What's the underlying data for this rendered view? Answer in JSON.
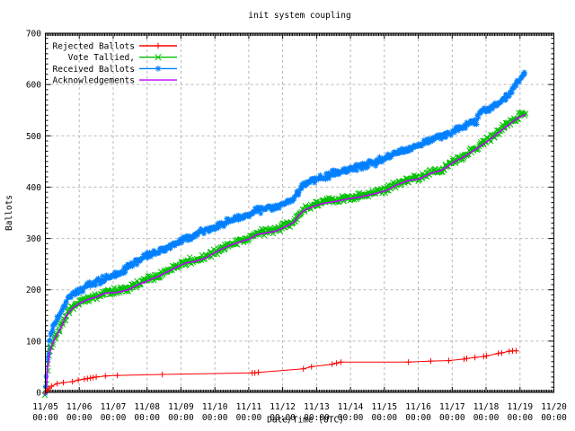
{
  "chart": {
    "title": "init system coupling",
    "xlabel": "Date/Time (UTC)",
    "ylabel": "Ballots",
    "background_color": "#ffffff",
    "border_color": "#000000",
    "grid_color": "#b8b8b8",
    "x_tick_dates": [
      "11/05",
      "11/06",
      "11/07",
      "11/08",
      "11/09",
      "11/10",
      "11/11",
      "11/12",
      "11/13",
      "11/14",
      "11/15",
      "11/16",
      "11/17",
      "11/18",
      "11/19",
      "11/20"
    ],
    "x_tick_time": "00:00",
    "y_tick_labels": [
      "0",
      "100",
      "200",
      "300",
      "400",
      "500",
      "600",
      "700"
    ]
  },
  "chart_data": {
    "type": "line",
    "title": "init system coupling",
    "xlabel": "Date/Time (UTC)",
    "ylabel": "Ballots",
    "x_unit": "days since 11/05 00:00 UTC",
    "x_range_days": [
      0,
      15
    ],
    "ylim": [
      0,
      700
    ],
    "y_tick_step": 100,
    "x_minor_tick": "hourly",
    "y_minor_tick": 10,
    "grid": "dashed major ticks",
    "legend_position": "top-left inside plot, no box",
    "series": [
      {
        "name": "Rejected Ballots",
        "color": "#ff0000",
        "marker": "plus",
        "style": "line with markers at points",
        "points": [
          [
            0,
            0
          ],
          [
            0.05,
            3
          ],
          [
            0.1,
            7
          ],
          [
            0.18,
            12
          ],
          [
            0.35,
            17
          ],
          [
            0.53,
            19
          ],
          [
            0.8,
            21
          ],
          [
            0.97,
            24
          ],
          [
            1.15,
            26
          ],
          [
            1.24,
            27
          ],
          [
            1.33,
            28
          ],
          [
            1.41,
            29
          ],
          [
            1.5,
            30
          ],
          [
            1.77,
            32
          ],
          [
            2.12,
            33
          ],
          [
            3.45,
            35
          ],
          [
            6.1,
            38
          ],
          [
            6.18,
            38
          ],
          [
            6.28,
            39
          ],
          [
            7.61,
            46
          ],
          [
            7.85,
            50
          ],
          [
            8.46,
            55
          ],
          [
            8.59,
            57
          ],
          [
            8.72,
            59
          ],
          [
            10.71,
            59
          ],
          [
            11.37,
            61
          ],
          [
            11.9,
            62
          ],
          [
            12.35,
            65
          ],
          [
            12.43,
            66
          ],
          [
            12.67,
            68
          ],
          [
            12.93,
            70
          ],
          [
            13.01,
            71
          ],
          [
            13.36,
            76
          ],
          [
            13.46,
            77
          ],
          [
            13.68,
            80
          ],
          [
            13.78,
            81
          ],
          [
            13.89,
            81
          ]
        ]
      },
      {
        "name": "Vote Tallied,",
        "color": "#00c000",
        "marker": "cross",
        "style": "dense scattered marker band",
        "points": [
          [
            0,
            0
          ],
          [
            0.04,
            20
          ],
          [
            0.07,
            50
          ],
          [
            0.1,
            70
          ],
          [
            0.16,
            88
          ],
          [
            0.22,
            98
          ],
          [
            0.29,
            108
          ],
          [
            0.36,
            116
          ],
          [
            0.42,
            123
          ],
          [
            0.5,
            134
          ],
          [
            0.56,
            144
          ],
          [
            0.63,
            152
          ],
          [
            0.69,
            158
          ],
          [
            0.8,
            166
          ],
          [
            0.95,
            173
          ],
          [
            1.1,
            178
          ],
          [
            1.22,
            182
          ],
          [
            1.35,
            185
          ],
          [
            1.48,
            187
          ],
          [
            1.6,
            191
          ],
          [
            1.75,
            195
          ],
          [
            1.9,
            196
          ],
          [
            2.1,
            197
          ],
          [
            2.28,
            199
          ],
          [
            2.42,
            202
          ],
          [
            2.54,
            205
          ],
          [
            2.68,
            210
          ],
          [
            2.81,
            214
          ],
          [
            2.97,
            218
          ],
          [
            3.1,
            222
          ],
          [
            3.34,
            228
          ],
          [
            3.47,
            233
          ],
          [
            3.6,
            237
          ],
          [
            3.75,
            242
          ],
          [
            3.87,
            246
          ],
          [
            4,
            250
          ],
          [
            4.13,
            254
          ],
          [
            4.27,
            256
          ],
          [
            4.4,
            257
          ],
          [
            4.53,
            260
          ],
          [
            4.7,
            263
          ],
          [
            4.93,
            272
          ],
          [
            5.19,
            281
          ],
          [
            5.46,
            289
          ],
          [
            5.72,
            295
          ],
          [
            6.02,
            301
          ],
          [
            6.25,
            310
          ],
          [
            6.52,
            313
          ],
          [
            6.79,
            316
          ],
          [
            7.05,
            324
          ],
          [
            7.32,
            333
          ],
          [
            7.45,
            345
          ],
          [
            7.58,
            354
          ],
          [
            7.71,
            359
          ],
          [
            7.92,
            365
          ],
          [
            8.24,
            371
          ],
          [
            8.56,
            374
          ],
          [
            8.91,
            379
          ],
          [
            9.3,
            383
          ],
          [
            9.7,
            389
          ],
          [
            10.05,
            395
          ],
          [
            10.36,
            406
          ],
          [
            10.71,
            415
          ],
          [
            11.03,
            418
          ],
          [
            11.37,
            429
          ],
          [
            11.69,
            435
          ],
          [
            11.82,
            440
          ],
          [
            12.03,
            450
          ],
          [
            12.2,
            456
          ],
          [
            12.4,
            463
          ],
          [
            12.6,
            472
          ],
          [
            12.72,
            477
          ],
          [
            12.9,
            485
          ],
          [
            13.1,
            494
          ],
          [
            13.25,
            502
          ],
          [
            13.42,
            511
          ],
          [
            13.6,
            520
          ],
          [
            13.76,
            528
          ],
          [
            13.94,
            537
          ],
          [
            14.08,
            541
          ],
          [
            14.16,
            544
          ]
        ]
      },
      {
        "name": "Received Ballots",
        "color": "#0080ff",
        "marker": "star",
        "style": "dense scattered marker band",
        "points": [
          [
            0,
            0
          ],
          [
            0.04,
            30
          ],
          [
            0.07,
            70
          ],
          [
            0.1,
            95
          ],
          [
            0.16,
            112
          ],
          [
            0.22,
            125
          ],
          [
            0.29,
            135
          ],
          [
            0.36,
            144
          ],
          [
            0.42,
            152
          ],
          [
            0.5,
            163
          ],
          [
            0.56,
            170
          ],
          [
            0.63,
            177
          ],
          [
            0.69,
            182
          ],
          [
            0.8,
            189
          ],
          [
            0.95,
            196
          ],
          [
            1.05,
            200
          ],
          [
            1.22,
            207
          ],
          [
            1.35,
            211
          ],
          [
            1.48,
            214
          ],
          [
            1.6,
            218
          ],
          [
            1.75,
            222
          ],
          [
            1.88,
            225
          ],
          [
            2,
            228
          ],
          [
            2.15,
            231
          ],
          [
            2.28,
            235
          ],
          [
            2.42,
            243
          ],
          [
            2.54,
            249
          ],
          [
            2.68,
            253
          ],
          [
            2.81,
            257
          ],
          [
            2.97,
            266
          ],
          [
            3.1,
            270
          ],
          [
            3.34,
            275
          ],
          [
            3.47,
            280
          ],
          [
            3.6,
            284
          ],
          [
            3.75,
            288
          ],
          [
            3.87,
            292
          ],
          [
            4,
            298
          ],
          [
            4.13,
            301
          ],
          [
            4.27,
            303
          ],
          [
            4.4,
            304
          ],
          [
            4.53,
            313
          ],
          [
            4.7,
            316
          ],
          [
            4.93,
            320
          ],
          [
            5.19,
            327
          ],
          [
            5.46,
            336
          ],
          [
            5.72,
            339
          ],
          [
            6.02,
            348
          ],
          [
            6.25,
            354
          ],
          [
            6.52,
            357
          ],
          [
            6.79,
            362
          ],
          [
            7.05,
            368
          ],
          [
            7.32,
            377
          ],
          [
            7.45,
            389
          ],
          [
            7.58,
            400
          ],
          [
            7.71,
            409
          ],
          [
            7.92,
            415
          ],
          [
            8.24,
            420
          ],
          [
            8.56,
            429
          ],
          [
            8.91,
            435
          ],
          [
            9.3,
            441
          ],
          [
            9.7,
            447
          ],
          [
            10.05,
            457
          ],
          [
            10.36,
            467
          ],
          [
            10.71,
            473
          ],
          [
            11.03,
            482
          ],
          [
            11.37,
            493
          ],
          [
            11.69,
            499
          ],
          [
            11.82,
            503
          ],
          [
            12.03,
            508
          ],
          [
            12.2,
            514
          ],
          [
            12.4,
            520
          ],
          [
            12.6,
            526
          ],
          [
            12.72,
            529
          ],
          [
            12.8,
            545
          ],
          [
            12.9,
            552
          ],
          [
            13.1,
            555
          ],
          [
            13.25,
            558
          ],
          [
            13.42,
            566
          ],
          [
            13.6,
            575
          ],
          [
            13.76,
            590
          ],
          [
            13.94,
            607
          ],
          [
            14.08,
            619
          ],
          [
            14.16,
            623
          ]
        ]
      },
      {
        "name": "Acknowledgements",
        "color": "#c000ff",
        "marker": "none",
        "style": "solid line tracking the Vote Tallied curve",
        "points_ref": "Vote Tallied,",
        "offset": -2
      }
    ]
  }
}
